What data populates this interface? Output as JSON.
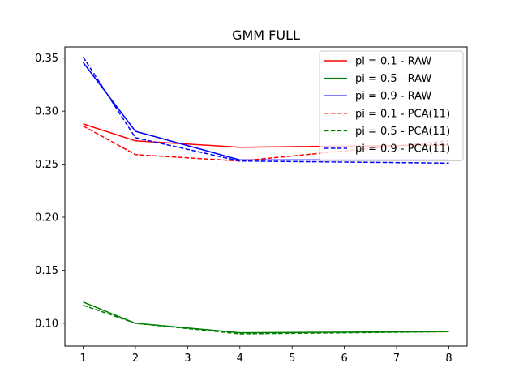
{
  "chart_data": {
    "type": "line",
    "title": "GMM FULL",
    "xlabel": "",
    "ylabel": "",
    "x": [
      1,
      2,
      4,
      8
    ],
    "xlim": [
      0.65,
      8.35
    ],
    "ylim": [
      0.0785,
      0.3605
    ],
    "xticks": [
      1,
      2,
      3,
      4,
      5,
      6,
      7,
      8
    ],
    "yticks": [
      0.1,
      0.15,
      0.2,
      0.25,
      0.3,
      0.35
    ],
    "ytick_labels": [
      "0.10",
      "0.15",
      "0.20",
      "0.25",
      "0.30",
      "0.35"
    ],
    "grid": false,
    "legend_position": "top-right",
    "series": [
      {
        "name": "pi = 0.1 - RAW",
        "color": "#ff0000",
        "style": "solid",
        "values": [
          0.288,
          0.272,
          0.266,
          0.268
        ]
      },
      {
        "name": "pi = 0.5 - RAW",
        "color": "#008000",
        "style": "solid",
        "values": [
          0.12,
          0.1,
          0.091,
          0.092
        ]
      },
      {
        "name": "pi = 0.9 - RAW",
        "color": "#0000ff",
        "style": "solid",
        "values": [
          0.346,
          0.281,
          0.254,
          0.254
        ]
      },
      {
        "name": "pi = 0.1 - PCA(11)",
        "color": "#ff0000",
        "style": "dashed",
        "values": [
          0.286,
          0.259,
          0.253,
          0.272
        ]
      },
      {
        "name": "pi = 0.5 - PCA(11)",
        "color": "#008000",
        "style": "dashed",
        "values": [
          0.117,
          0.1,
          0.09,
          0.092
        ]
      },
      {
        "name": "pi = 0.9 - PCA(11)",
        "color": "#0000ff",
        "style": "dashed",
        "values": [
          0.351,
          0.275,
          0.253,
          0.251
        ]
      }
    ]
  }
}
